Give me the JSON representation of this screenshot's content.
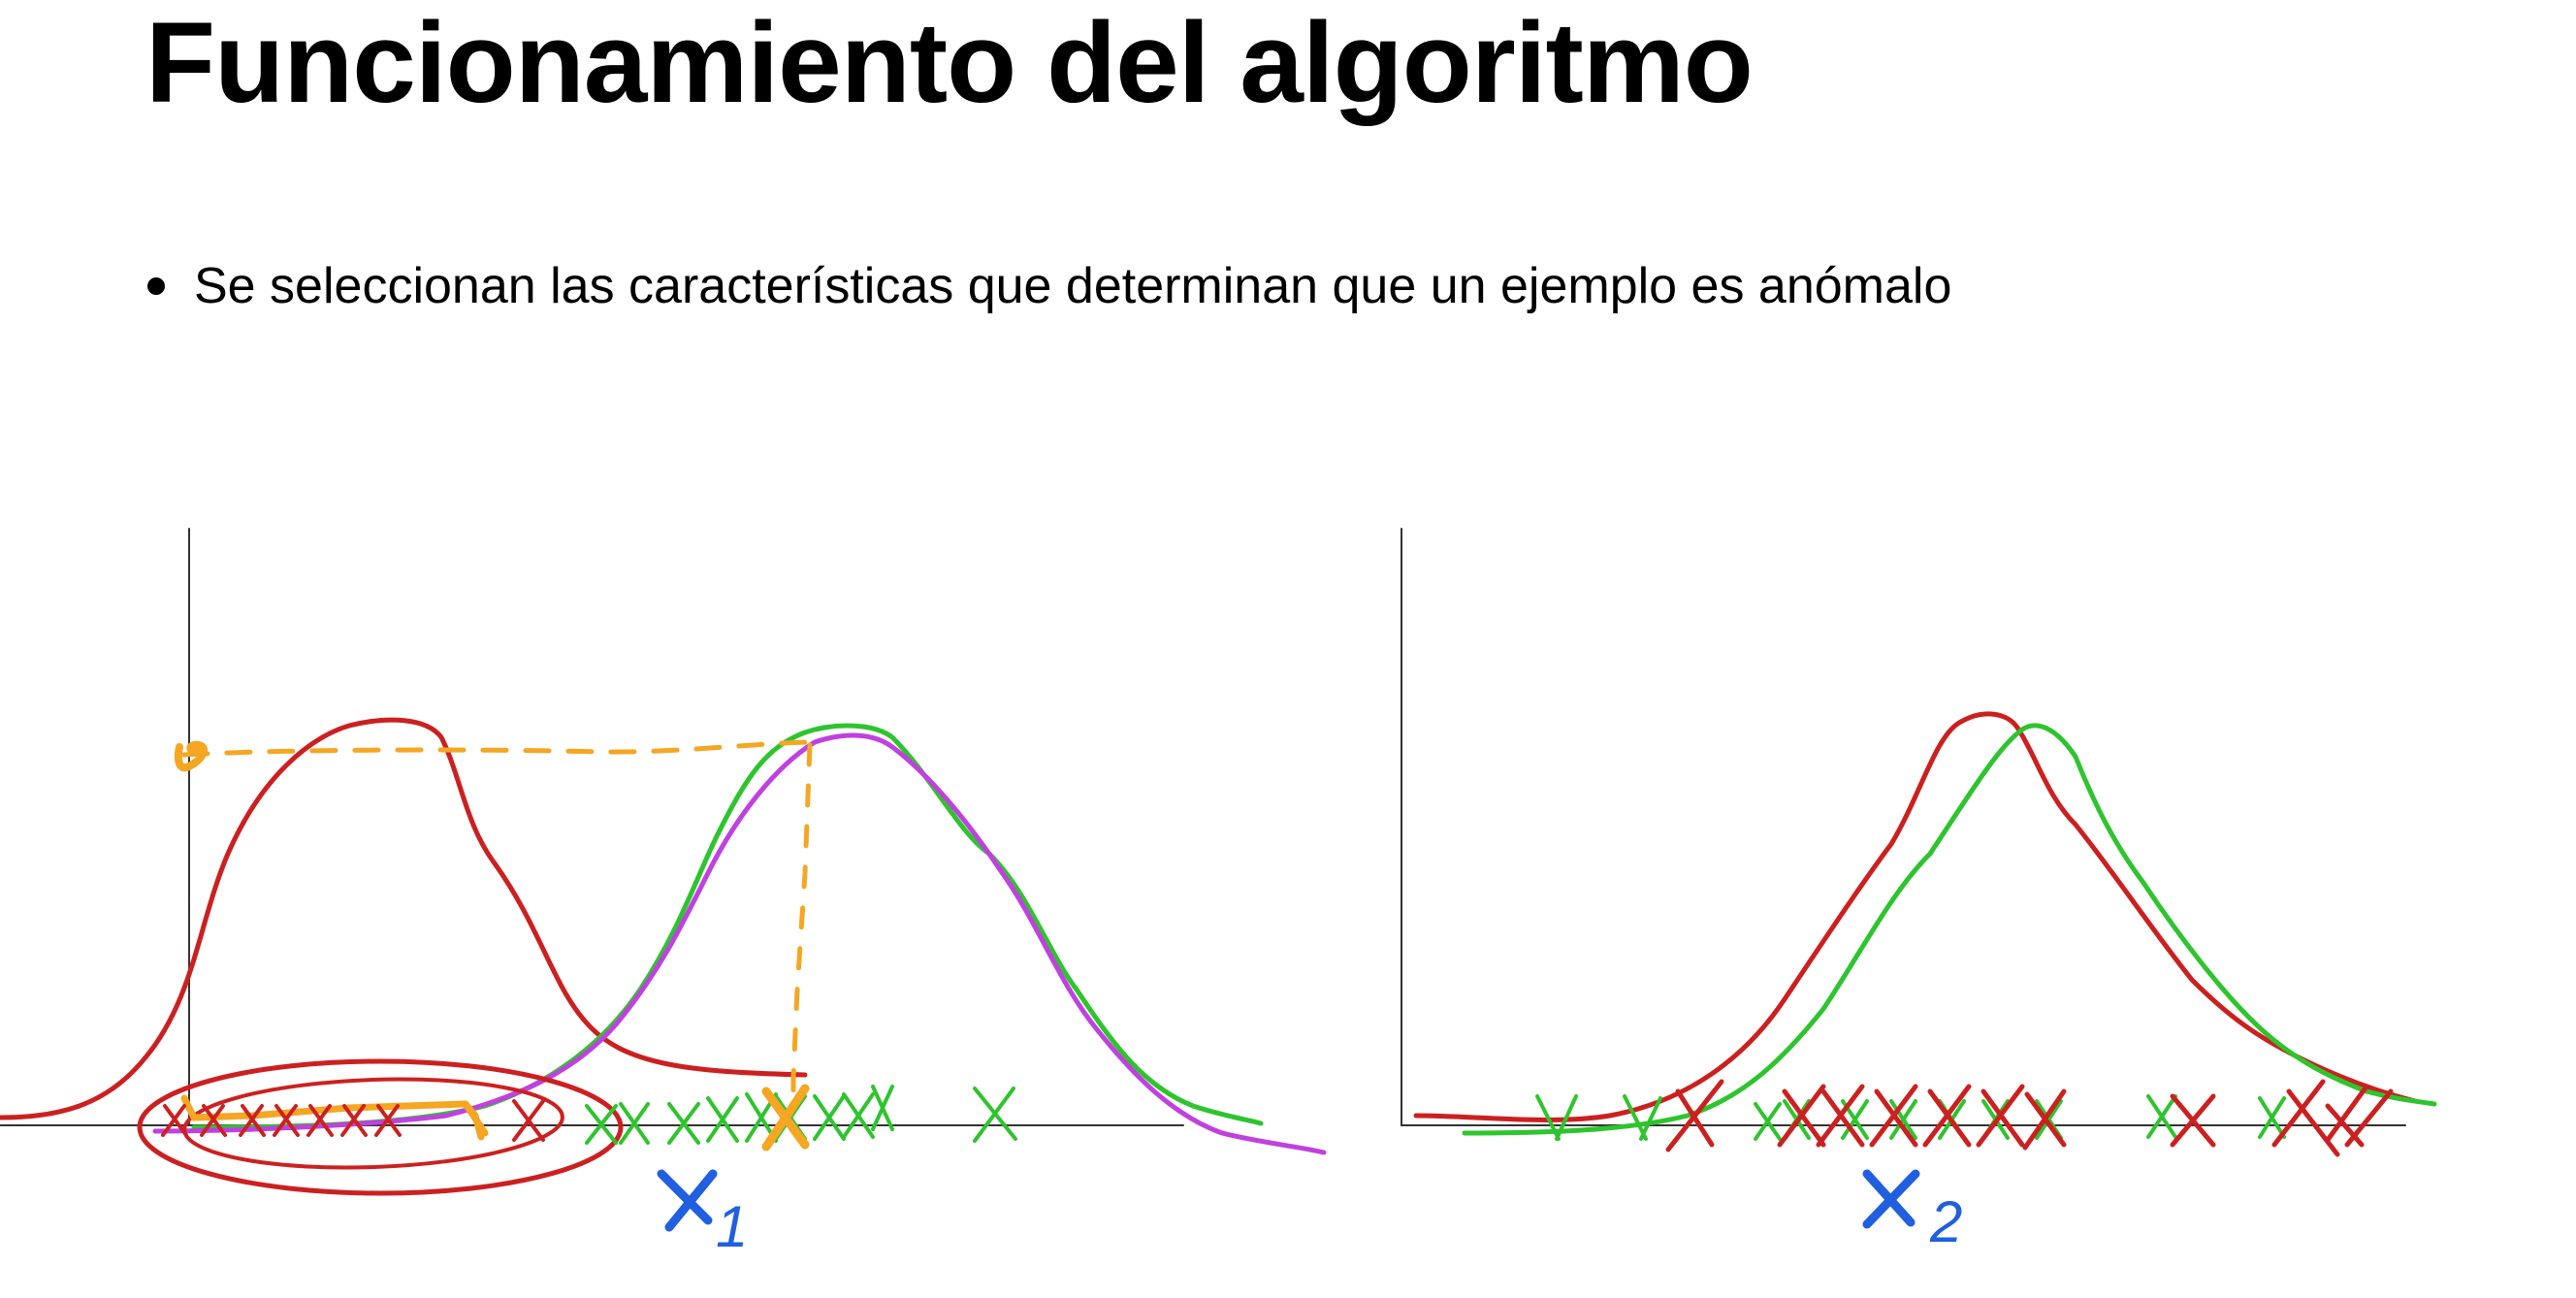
{
  "slide": {
    "title": "Funcionamiento del algoritmo",
    "bullets": [
      "Se seleccionan las características que determinan que un ejemplo es anómalo"
    ]
  },
  "panels": [
    {
      "id": "left",
      "feature_label": "x",
      "feature_subscript": "1"
    },
    {
      "id": "right",
      "feature_label": "x",
      "feature_subscript": "2"
    }
  ],
  "colors": {
    "anomalous": "#cc2020",
    "normal": "#2ec42e",
    "fit": "#c040e0",
    "threshold": "#f5a623",
    "label": "#1f5fe0",
    "axis": "#333333"
  }
}
